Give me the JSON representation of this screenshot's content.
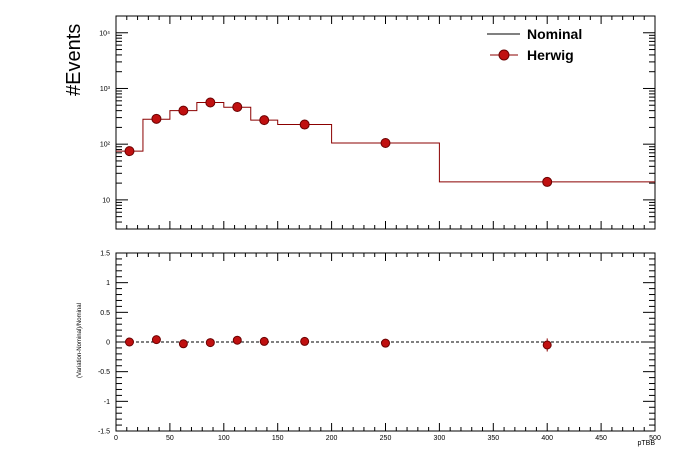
{
  "chart_data": [
    {
      "type": "histogram",
      "panel": "top",
      "ylabel": "#Events",
      "yscale": "log",
      "ylim": [
        3,
        20000
      ],
      "xlim": [
        0,
        500
      ],
      "y_tick_labels": [
        {
          "value": 10,
          "text": "10"
        },
        {
          "value": 100,
          "text": "10²"
        },
        {
          "value": 1000,
          "text": "10³"
        },
        {
          "value": 10000,
          "text": "10⁴"
        }
      ],
      "bins": [
        {
          "lo": 0,
          "hi": 25,
          "nominal": 75
        },
        {
          "lo": 25,
          "hi": 50,
          "nominal": 280
        },
        {
          "lo": 50,
          "hi": 75,
          "nominal": 400
        },
        {
          "lo": 75,
          "hi": 100,
          "nominal": 560
        },
        {
          "lo": 100,
          "hi": 125,
          "nominal": 460
        },
        {
          "lo": 125,
          "hi": 150,
          "nominal": 270
        },
        {
          "lo": 150,
          "hi": 200,
          "nominal": 225
        },
        {
          "lo": 200,
          "hi": 300,
          "nominal": 105
        },
        {
          "lo": 300,
          "hi": 500,
          "nominal": 21
        }
      ],
      "series": [
        {
          "name": "Nominal",
          "style": "line",
          "color": "#8b0000"
        },
        {
          "name": "Herwig",
          "style": "marker",
          "color": "#c01010",
          "x": [
            12.5,
            37.5,
            62.5,
            87.5,
            112.5,
            137.5,
            175,
            250,
            400
          ],
          "y": [
            75,
            285,
            400,
            560,
            465,
            270,
            225,
            105,
            21
          ]
        }
      ],
      "legend_position": "top-right"
    },
    {
      "type": "scatter",
      "panel": "bottom",
      "xlabel": "pTBB",
      "ylabel": "(Variation-Nominal)/Nominal",
      "xlim": [
        0,
        500
      ],
      "ylim": [
        -1.5,
        1.5
      ],
      "x_ticks": [
        0,
        50,
        100,
        150,
        200,
        250,
        300,
        350,
        400,
        450,
        500
      ],
      "y_ticks": [
        -1.5,
        -1,
        -0.5,
        0,
        0.5,
        1,
        1.5
      ],
      "y_tick_labels": [
        "-1.5",
        "-1",
        "-0.5",
        "0",
        "0.5",
        "1",
        "1.5"
      ],
      "reference_line": 0,
      "series": [
        {
          "name": "Herwig",
          "color": "#c01010",
          "x": [
            12.5,
            37.5,
            62.5,
            87.5,
            112.5,
            137.5,
            175,
            250,
            400
          ],
          "y": [
            0.0,
            0.04,
            -0.03,
            -0.01,
            0.03,
            0.01,
            0.01,
            -0.02,
            -0.05
          ],
          "err": [
            0.02,
            0.02,
            0.02,
            0.02,
            0.02,
            0.02,
            0.02,
            0.04,
            0.11
          ]
        }
      ]
    }
  ],
  "colors": {
    "line": "#8b0000",
    "marker_fill": "#c01010",
    "marker_edge": "#6a0000"
  }
}
